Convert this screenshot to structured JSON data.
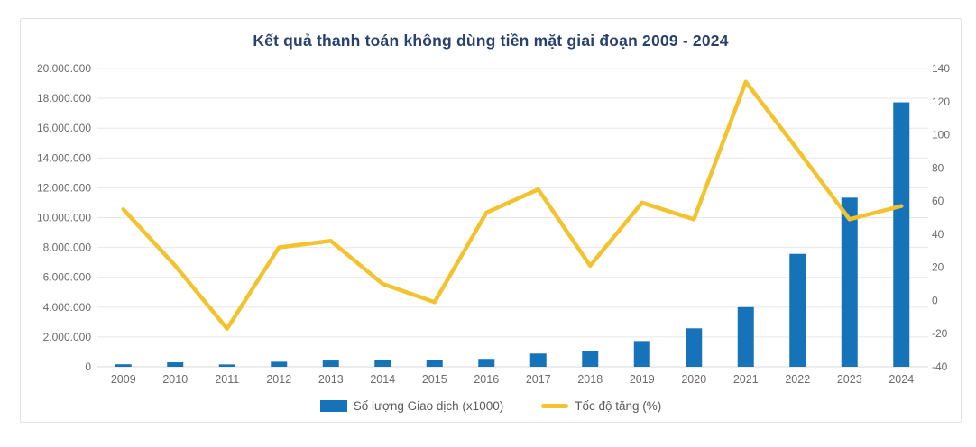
{
  "colors": {
    "bar": "#1673b9",
    "line": "#f3c32f",
    "title": "#28416f",
    "axis_text": "#6b6b6b",
    "grid": "#e7e7e7",
    "axis_line": "#d8d8d8",
    "legend_text": "#5a5a5a",
    "card_border": "#e3e3e3"
  },
  "chart_data": {
    "type": "combo",
    "title": "Kết quả thanh toán không dùng tiền mặt giai đoạn 2009 - 2024",
    "categories": [
      "2009",
      "2010",
      "2011",
      "2012",
      "2013",
      "2014",
      "2015",
      "2016",
      "2017",
      "2018",
      "2019",
      "2020",
      "2021",
      "2022",
      "2023",
      "2024"
    ],
    "series": [
      {
        "name": "Số lượng Giao dịch (x1000)",
        "type": "bar",
        "axis": "left",
        "color": "#1673b9",
        "values": [
          170000,
          300000,
          160000,
          340000,
          420000,
          450000,
          440000,
          530000,
          890000,
          1050000,
          1730000,
          2580000,
          4000000,
          7570000,
          11340000,
          17730000
        ]
      },
      {
        "name": "Tốc độ tăng (%)",
        "type": "line",
        "axis": "right",
        "color": "#f3c32f",
        "values": [
          55,
          21,
          -17,
          32,
          36,
          10,
          -1,
          53,
          67,
          21,
          59,
          49,
          132,
          91,
          49,
          57
        ]
      }
    ],
    "left_axis": {
      "min": 0,
      "max": 20000000,
      "step": 2000000,
      "tick_labels": [
        "0",
        "2.000.000",
        "4.000.000",
        "6.000.000",
        "8.000.000",
        "10.000.000",
        "12.000.000",
        "14.000.000",
        "16.000.000",
        "18.000.000",
        "20.000.000"
      ]
    },
    "right_axis": {
      "min": -40,
      "max": 140,
      "step": 20,
      "tick_labels": [
        "-40",
        "-20",
        "0",
        "20",
        "40",
        "60",
        "80",
        "100",
        "120",
        "140"
      ]
    },
    "grid": true,
    "legend_position": "bottom"
  }
}
